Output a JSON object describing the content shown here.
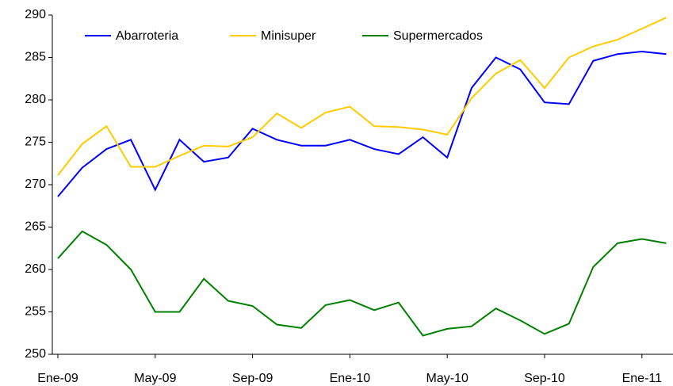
{
  "chart_data": {
    "type": "line",
    "categories": [
      "Ene-09",
      null,
      null,
      null,
      "May-09",
      null,
      null,
      null,
      "Sep-09",
      null,
      null,
      null,
      "Ene-10",
      null,
      null,
      null,
      "May-10",
      null,
      null,
      null,
      "Sep-10",
      null,
      null,
      null,
      "Ene-11",
      null
    ],
    "series": [
      {
        "name": "Abarroteria",
        "color": "#0000ff",
        "values": [
          268.6,
          272.0,
          274.2,
          275.3,
          269.4,
          275.3,
          272.7,
          273.2,
          276.6,
          275.3,
          274.6,
          274.6,
          275.3,
          274.2,
          273.6,
          275.6,
          273.2,
          281.4,
          285.0,
          283.6,
          279.7,
          279.5,
          284.6,
          285.4,
          285.7,
          285.4
        ]
      },
      {
        "name": "Minisuper",
        "color": "#ffcc00",
        "values": [
          271.1,
          274.8,
          276.9,
          272.1,
          272.1,
          273.4,
          274.6,
          274.5,
          275.6,
          278.4,
          276.7,
          278.5,
          279.2,
          276.9,
          276.8,
          276.5,
          275.9,
          280.2,
          283.1,
          284.7,
          281.4,
          285.0,
          286.3,
          287.1,
          288.4,
          289.7
        ]
      },
      {
        "name": "Supermercados",
        "color": "#008000",
        "values": [
          261.3,
          264.5,
          262.9,
          260.0,
          255.0,
          255.0,
          258.9,
          256.3,
          255.7,
          253.5,
          253.1,
          255.8,
          256.4,
          255.2,
          256.1,
          252.2,
          253.0,
          253.3,
          255.4,
          254.0,
          252.4,
          253.6,
          260.3,
          263.1,
          263.6,
          263.1
        ]
      }
    ],
    "ylim": [
      250,
      290
    ],
    "yticks": [
      250,
      255,
      260,
      265,
      270,
      275,
      280,
      285,
      290
    ],
    "grid": false
  }
}
